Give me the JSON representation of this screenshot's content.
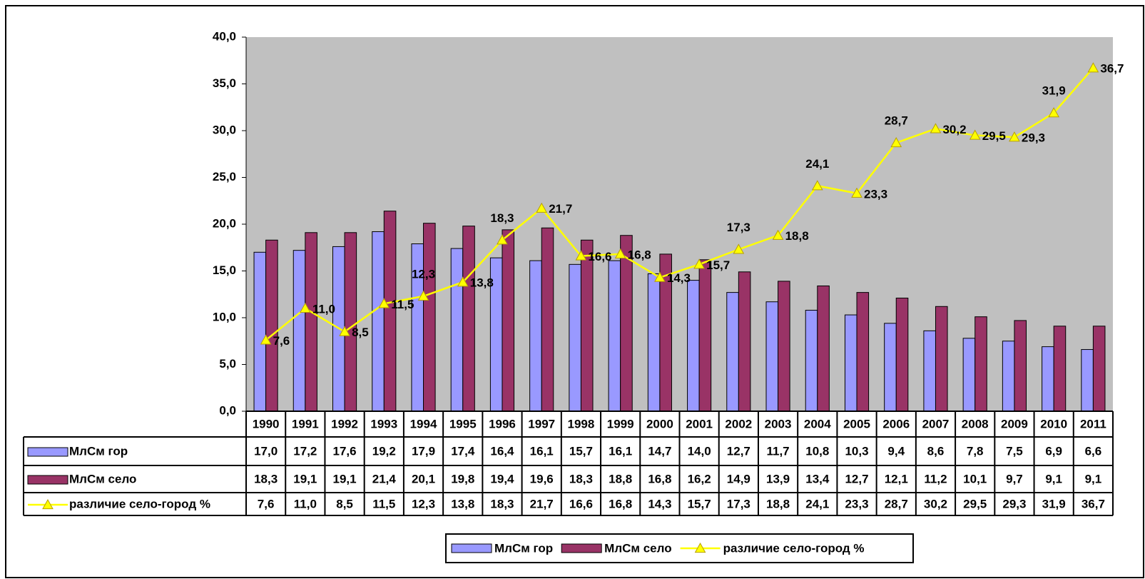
{
  "chart_data": {
    "type": "bar",
    "categories": [
      "1990",
      "1991",
      "1992",
      "1993",
      "1994",
      "1995",
      "1996",
      "1997",
      "1998",
      "1999",
      "2000",
      "2001",
      "2002",
      "2003",
      "2004",
      "2005",
      "2006",
      "2007",
      "2008",
      "2009",
      "2010",
      "2011"
    ],
    "series": [
      {
        "name": "МлСм гор",
        "type": "bar",
        "color": "#9999ff",
        "values": [
          17.0,
          17.2,
          17.6,
          19.2,
          17.9,
          17.4,
          16.4,
          16.1,
          15.7,
          16.1,
          14.7,
          14.0,
          12.7,
          11.7,
          10.8,
          10.3,
          9.4,
          8.6,
          7.8,
          7.5,
          6.9,
          6.6
        ],
        "value_labels": [
          "17,0",
          "17,2",
          "17,6",
          "19,2",
          "17,9",
          "17,4",
          "16,4",
          "16,1",
          "15,7",
          "16,1",
          "14,7",
          "14,0",
          "12,7",
          "11,7",
          "10,8",
          "10,3",
          "9,4",
          "8,6",
          "7,8",
          "7,5",
          "6,9",
          "6,6"
        ]
      },
      {
        "name": "МлСм село",
        "type": "bar",
        "color": "#993366",
        "values": [
          18.3,
          19.1,
          19.1,
          21.4,
          20.1,
          19.8,
          19.4,
          19.6,
          18.3,
          18.8,
          16.8,
          16.2,
          14.9,
          13.9,
          13.4,
          12.7,
          12.1,
          11.2,
          10.1,
          9.7,
          9.1,
          9.1
        ],
        "value_labels": [
          "18,3",
          "19,1",
          "19,1",
          "21,4",
          "20,1",
          "19,8",
          "19,4",
          "19,6",
          "18,3",
          "18,8",
          "16,8",
          "16,2",
          "14,9",
          "13,9",
          "13,4",
          "12,7",
          "12,1",
          "11,2",
          "10,1",
          "9,7",
          "9,1",
          "9,1"
        ]
      },
      {
        "name": "различие село-город %",
        "type": "line",
        "color": "#ffff00",
        "values": [
          7.6,
          11.0,
          8.5,
          11.5,
          12.3,
          13.8,
          18.3,
          21.7,
          16.6,
          16.8,
          14.3,
          15.7,
          17.3,
          18.8,
          24.1,
          23.3,
          28.7,
          30.2,
          29.5,
          29.3,
          31.9,
          36.7
        ],
        "value_labels": [
          "7,6",
          "11,0",
          "8,5",
          "11,5",
          "12,3",
          "13,8",
          "18,3",
          "21,7",
          "16,6",
          "16,8",
          "14,3",
          "15,7",
          "17,3",
          "18,8",
          "24,1",
          "23,3",
          "28,7",
          "30,2",
          "29,5",
          "29,3",
          "31,9",
          "36,7"
        ]
      }
    ],
    "ylim": [
      0,
      40
    ],
    "yticks": [
      {
        "value": 0,
        "label": "0,0"
      },
      {
        "value": 5,
        "label": "5,0"
      },
      {
        "value": 10,
        "label": "10,0"
      },
      {
        "value": 15,
        "label": "15,0"
      },
      {
        "value": 20,
        "label": "20,0"
      },
      {
        "value": 25,
        "label": "25,0"
      },
      {
        "value": 30,
        "label": "30,0"
      },
      {
        "value": 35,
        "label": "35,0"
      },
      {
        "value": 40,
        "label": "40,0"
      }
    ],
    "plot_background": "#c0c0c0",
    "data_table": true,
    "legend": "bottom"
  }
}
